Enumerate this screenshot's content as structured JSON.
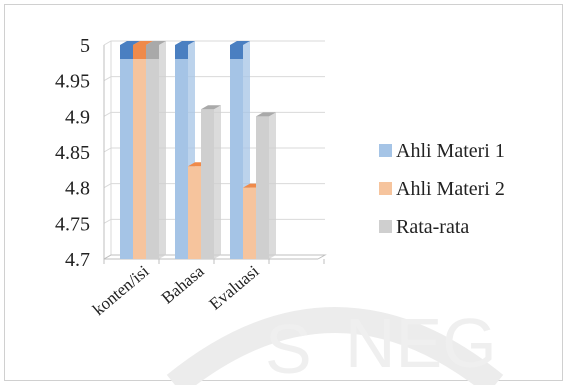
{
  "chart_data": {
    "type": "bar",
    "style": "3d-clustered-column",
    "categories": [
      "konten/isi",
      "Bahasa",
      "Evaluasi"
    ],
    "series": [
      {
        "name": "Ahli Materi 1",
        "values": [
          5,
          5,
          5
        ],
        "color": "#a5c4e6",
        "top_color": "#4a7fc1"
      },
      {
        "name": "Ahli Materi  2",
        "values": [
          5,
          4.83,
          4.8
        ],
        "color": "#f6c49d",
        "top_color": "#ef8a4a"
      },
      {
        "name": "Rata-rata",
        "values": [
          5,
          4.91,
          4.9
        ],
        "color": "#cfcfcf",
        "top_color": "#a9a9a9"
      }
    ],
    "yticks": [
      "4.7",
      "4.75",
      "4.8",
      "4.85",
      "4.9",
      "4.95",
      "5"
    ],
    "ylim": [
      4.7,
      5
    ],
    "grid": true,
    "legend": "right",
    "title": "",
    "xlabel": "",
    "ylabel": ""
  }
}
